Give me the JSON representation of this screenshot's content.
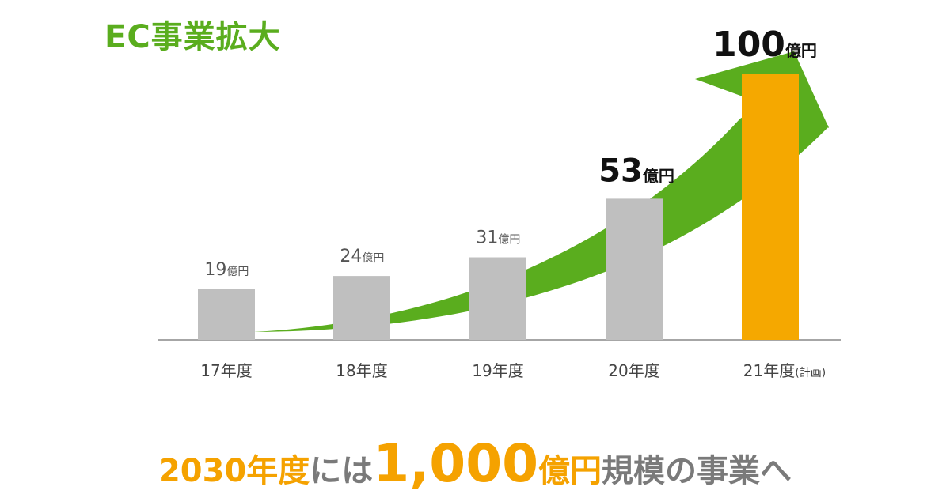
{
  "title": "EC事業拡大",
  "chart_data": {
    "type": "bar",
    "categories": [
      "17年度",
      "18年度",
      "19年度",
      "20年度",
      "21年度"
    ],
    "category_notes": [
      "",
      "",
      "",
      "",
      "(計画)"
    ],
    "values": [
      19,
      24,
      31,
      53,
      100
    ],
    "value_labels": [
      "19",
      "24",
      "31",
      "53",
      "100"
    ],
    "unit": "億円",
    "ylim": [
      0,
      100
    ],
    "bar_colors": [
      "#bfbfbf",
      "#bfbfbf",
      "#bfbfbf",
      "#bfbfbf",
      "#f5a800"
    ],
    "arrow_color": "#5aad1e"
  },
  "footer": {
    "year": "2030年度",
    "mid": "には",
    "amount": "1,000",
    "unit": "億円",
    "tail": "規模の事業へ"
  }
}
